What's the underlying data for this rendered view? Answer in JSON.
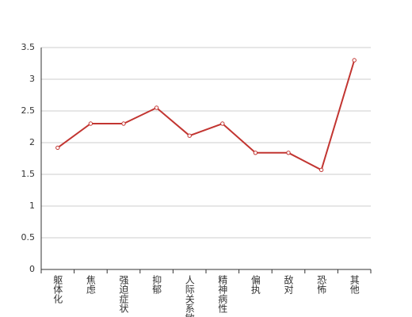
{
  "chart_data": {
    "type": "line",
    "categories": [
      "躯体化",
      "焦虑",
      "强迫症状",
      "抑郁",
      "人际关系敏感",
      "精神病性",
      "偏执",
      "敌对",
      "恐怖",
      "其他"
    ],
    "values": [
      1.92,
      2.3,
      2.3,
      2.55,
      2.11,
      2.3,
      1.84,
      1.84,
      1.57,
      3.3
    ],
    "color": "#c23531",
    "ylim": [
      0,
      3.5
    ],
    "yticks": [
      0,
      0.5,
      1,
      1.5,
      2,
      2.5,
      3,
      3.5
    ],
    "grid": true
  }
}
